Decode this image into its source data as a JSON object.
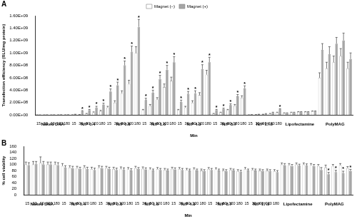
{
  "chart_data": [
    {
      "type": "bar",
      "panel": "A",
      "categories": [
        15,
        30,
        60,
        120,
        180,
        15,
        30,
        60,
        120,
        180,
        15,
        30,
        60,
        120,
        180,
        15,
        30,
        60,
        120,
        180,
        15,
        30,
        60,
        120,
        180,
        15,
        30,
        60,
        120,
        180,
        15,
        30,
        60,
        120,
        180,
        null,
        null,
        null,
        null,
        null,
        null,
        null,
        null,
        null,
        null
      ],
      "category_groups": [
        "Naked DNA",
        "N/P 0.4",
        "N/P 0.8",
        "N/P 1.6",
        "N/P 4.3",
        "N/P 8.7",
        "N/P 17.5",
        "Lipofectamine",
        "PolyMAG"
      ],
      "xlabel": "Min",
      "ylabel": "Transfection efficiency (RLU/mg protein)",
      "ylim": [
        0,
        1600000000
      ],
      "yticks": [
        {
          "value": 0,
          "label": "0.00E+00"
        },
        {
          "value": 200000000,
          "label": "2.00E+08"
        },
        {
          "value": 400000000,
          "label": "4.00E+08"
        },
        {
          "value": 600000000,
          "label": "6.00E+08"
        },
        {
          "value": 800000000,
          "label": "8.00E+08"
        },
        {
          "value": 1000000000,
          "label": "1.00E+09"
        },
        {
          "value": 1200000000,
          "label": "1.20E+09"
        },
        {
          "value": 1400000000,
          "label": "1.40E+09"
        },
        {
          "value": 1600000000,
          "label": "1.60E+09"
        }
      ],
      "grid": false,
      "legend": "top",
      "series": [
        {
          "name": "Magnet (–)",
          "color": "#ffffff",
          "values": [
            1000000,
            1000000,
            1000000,
            2000000,
            2000000,
            2000000,
            5000000,
            20000000,
            40000000,
            60000000,
            120000000,
            200000000,
            350000000,
            500000000,
            1000000000,
            80000000,
            150000000,
            250000000,
            450000000,
            550000000,
            80000000,
            120000000,
            200000000,
            320000000,
            650000000,
            20000000,
            40000000,
            80000000,
            150000000,
            280000000,
            2000000,
            5000000,
            10000000,
            20000000,
            40000000,
            30000000,
            40000000,
            50000000,
            50000000,
            60000000,
            600000000,
            750000000,
            850000000,
            950000000,
            750000000
          ],
          "errors": [
            1000000,
            1000000,
            1000000,
            1000000,
            1000000,
            1000000,
            2000000,
            5000000,
            10000000,
            15000000,
            20000000,
            30000000,
            40000000,
            60000000,
            100000000,
            10000000,
            20000000,
            30000000,
            50000000,
            60000000,
            10000000,
            20000000,
            30000000,
            40000000,
            70000000,
            5000000,
            5000000,
            10000000,
            20000000,
            30000000,
            1000000,
            1000000,
            2000000,
            5000000,
            5000000,
            5000000,
            5000000,
            5000000,
            5000000,
            5000000,
            80000000,
            100000000,
            100000000,
            120000000,
            100000000
          ]
        },
        {
          "name": "Magnet (+)",
          "color": "#a6a6a6",
          "values": [
            1000000,
            2000000,
            2000000,
            3000000,
            3000000,
            10000000,
            60000000,
            80000000,
            120000000,
            170000000,
            380000000,
            480000000,
            800000000,
            1020000000,
            1420000000,
            240000000,
            360000000,
            580000000,
            730000000,
            850000000,
            210000000,
            340000000,
            350000000,
            740000000,
            850000000,
            80000000,
            100000000,
            160000000,
            300000000,
            430000000,
            5000000,
            10000000,
            20000000,
            40000000,
            90000000,
            30000000,
            40000000,
            50000000,
            50000000,
            60000000,
            1050000000,
            980000000,
            1150000000,
            1200000000,
            900000000
          ],
          "errors": [
            1000000,
            1000000,
            1000000,
            1000000,
            1000000,
            2000000,
            10000000,
            10000000,
            20000000,
            20000000,
            40000000,
            50000000,
            70000000,
            90000000,
            120000000,
            30000000,
            40000000,
            60000000,
            70000000,
            90000000,
            30000000,
            40000000,
            40000000,
            70000000,
            80000000,
            10000000,
            10000000,
            20000000,
            30000000,
            40000000,
            1000000,
            2000000,
            3000000,
            5000000,
            10000000,
            5000000,
            5000000,
            5000000,
            5000000,
            5000000,
            100000000,
            120000000,
            100000000,
            120000000,
            100000000
          ],
          "significance": [
            null,
            null,
            null,
            null,
            null,
            null,
            "*",
            "*",
            "*",
            "*",
            "*",
            "*",
            "*",
            "*",
            "*",
            "*",
            "*",
            "*",
            "*",
            "*",
            "*",
            "*",
            "*",
            "*",
            "*",
            "*",
            "*",
            "*",
            "*",
            "*",
            null,
            null,
            null,
            null,
            "*",
            null,
            null,
            null,
            null,
            null,
            null,
            null,
            null,
            null,
            null
          ]
        }
      ]
    },
    {
      "type": "bar",
      "panel": "B",
      "categories": [
        15,
        30,
        60,
        120,
        180,
        15,
        30,
        60,
        120,
        180,
        15,
        30,
        60,
        120,
        180,
        15,
        30,
        60,
        120,
        180,
        15,
        30,
        60,
        120,
        180,
        15,
        30,
        60,
        120,
        180,
        15,
        30,
        60,
        120,
        180,
        null,
        null,
        null,
        null,
        null,
        null,
        null,
        null,
        null,
        null
      ],
      "category_groups": [
        "Naked DNA",
        "N/P 0.4",
        "N/P 0.8",
        "N/P 1.6",
        "N/P 4.3",
        "N/P 8.7",
        "N/P 17.5",
        "Lipofectamine",
        "PolyMAG"
      ],
      "xlabel": "Min",
      "ylabel": "% cell viability",
      "ylim": [
        0,
        160
      ],
      "yticks": [
        0,
        20,
        40,
        60,
        80,
        100,
        120,
        140,
        160
      ],
      "grid": false,
      "series": [
        {
          "color": "#ffffff",
          "values": [
            100,
            100,
            105,
            100,
            100,
            95,
            90,
            88,
            90,
            85,
            90,
            88,
            85,
            86,
            84,
            88,
            86,
            84,
            85,
            82,
            86,
            85,
            82,
            84,
            80,
            85,
            84,
            80,
            82,
            78,
            85,
            82,
            80,
            80,
            78,
            100,
            98,
            100,
            100,
            98,
            95,
            90,
            95,
            98,
            88
          ],
          "errors": [
            8,
            10,
            20,
            8,
            8,
            8,
            6,
            6,
            6,
            6,
            6,
            6,
            6,
            6,
            6,
            6,
            6,
            5,
            5,
            5,
            5,
            5,
            5,
            5,
            5,
            5,
            5,
            5,
            5,
            5,
            5,
            5,
            5,
            5,
            5,
            5,
            5,
            5,
            5,
            5,
            5,
            8,
            5,
            5,
            5
          ]
        },
        {
          "color": "#a6a6a6",
          "values": [
            98,
            102,
            100,
            100,
            98,
            90,
            88,
            85,
            85,
            82,
            88,
            85,
            82,
            83,
            80,
            85,
            84,
            80,
            82,
            80,
            84,
            82,
            80,
            80,
            78,
            82,
            80,
            78,
            80,
            76,
            80,
            80,
            78,
            78,
            75,
            98,
            95,
            96,
            97,
            95,
            82,
            68,
            75,
            72,
            78
          ],
          "errors": [
            8,
            8,
            10,
            8,
            8,
            6,
            6,
            6,
            6,
            6,
            6,
            6,
            6,
            6,
            6,
            5,
            5,
            5,
            5,
            5,
            5,
            5,
            5,
            5,
            5,
            5,
            5,
            5,
            5,
            5,
            5,
            5,
            5,
            5,
            5,
            5,
            5,
            5,
            5,
            5,
            8,
            6,
            6,
            6,
            6
          ],
          "significance": [
            null,
            null,
            null,
            null,
            null,
            null,
            null,
            null,
            null,
            null,
            null,
            null,
            null,
            null,
            null,
            null,
            null,
            null,
            null,
            null,
            null,
            null,
            null,
            null,
            null,
            null,
            null,
            null,
            null,
            null,
            null,
            null,
            null,
            null,
            null,
            null,
            null,
            null,
            null,
            null,
            null,
            "*",
            "*",
            "*",
            "*"
          ]
        }
      ]
    }
  ]
}
